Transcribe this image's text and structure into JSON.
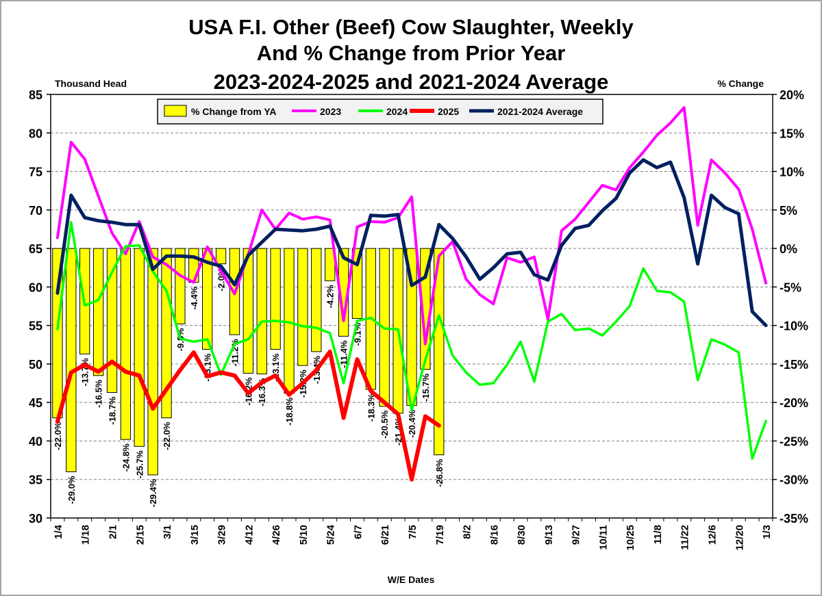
{
  "chart_data": {
    "type": "bar",
    "title_lines": [
      "USA F.I. Other (Beef) Cow Slaughter, Weekly",
      "And % Change from Prior Year",
      "2023-2024-2025 and 2021-2024 Average"
    ],
    "ylabel_left": "Thousand Head",
    "ylabel_right": "% Change",
    "xlabel": "W/E Dates",
    "ylim_left": [
      30,
      85
    ],
    "yticks_left": [
      30,
      35,
      40,
      45,
      50,
      55,
      60,
      65,
      70,
      75,
      80,
      85
    ],
    "ylim_right": [
      -35,
      20
    ],
    "yticks_right": [
      "-35%",
      "-30%",
      "-25%",
      "-20%",
      "-15%",
      "-10%",
      "-5%",
      "0%",
      "5%",
      "10%",
      "15%",
      "20%"
    ],
    "yticks_right_values": [
      -35,
      -30,
      -25,
      -20,
      -15,
      -10,
      -5,
      0,
      5,
      10,
      15,
      20
    ],
    "x_tick_labels": [
      "1/4",
      "1/18",
      "2/1",
      "2/15",
      "3/1",
      "3/15",
      "3/29",
      "4/12",
      "4/26",
      "5/10",
      "5/24",
      "6/7",
      "6/21",
      "7/5",
      "7/19",
      "8/2",
      "8/16",
      "8/30",
      "9/13",
      "9/27",
      "10/11",
      "10/25",
      "11/8",
      "11/22",
      "12/6",
      "12/20",
      "1/3"
    ],
    "legend": [
      "% Change from YA",
      "2023",
      "2024",
      "2025",
      "2021-2024 Average"
    ],
    "legend_position": "top-center",
    "grid": "horizontal-dashed",
    "colors": {
      "bar_fill": "#ffff00",
      "bar_stroke": "#000000",
      "s2023": "#ff00ff",
      "s2024": "#00ff00",
      "s2025": "#ff0000",
      "avg": "#002060",
      "plot_border": "#000000",
      "grid": "#808080",
      "frame": "#888888"
    },
    "weeks": 53,
    "pct_change": [
      -22.0,
      -29.0,
      -13.7,
      -16.5,
      -18.7,
      -24.8,
      -25.7,
      -29.4,
      -22.0,
      -9.8,
      -4.4,
      -13.1,
      -2.0,
      -11.2,
      -16.2,
      -16.3,
      -13.1,
      -18.8,
      -15.2,
      -13.4,
      -4.2,
      -11.4,
      -9.1,
      -18.3,
      -20.5,
      -21.4,
      -20.4,
      -15.7,
      -26.8
    ],
    "pct_labels": [
      "-22.0%",
      "-29.0%",
      "-13.7%",
      "-16.5%",
      "-18.7%",
      "-24.8%",
      "-25.7%",
      "-29.4%",
      "-22.0%",
      "-9.8%",
      "-4.4%",
      "-13.1%",
      "-2.0%",
      "-11.2%",
      "-16.2%",
      "-16.3%",
      "-13.1%",
      "-18.8%",
      "-15.2%",
      "-13.4%",
      "-4.2%",
      "-11.4%",
      "-9.1%",
      "-18.3%",
      "-20.5%",
      "-21.4%",
      "-20.4%",
      "-15.7%",
      "-26.8%"
    ],
    "series": [
      {
        "name": "2023",
        "values": [
          66.4,
          78.8,
          76.6,
          71.8,
          67.0,
          64.3,
          68.5,
          63.9,
          62.9,
          61.5,
          60.6,
          65.2,
          62.1,
          59.1,
          64.2,
          70.0,
          67.5,
          69.6,
          68.8,
          69.1,
          68.7,
          55.6,
          67.8,
          68.5,
          68.4,
          69.0,
          71.7,
          52.6,
          64.0,
          65.9,
          61.0,
          59.0,
          57.8,
          63.8,
          63.2,
          63.9,
          55.8,
          67.3,
          68.8,
          71.0,
          73.2,
          72.6,
          75.5,
          77.5,
          79.7,
          81.3,
          83.3,
          68.0,
          76.5,
          74.8,
          72.7,
          67.5,
          60.5
        ]
      },
      {
        "name": "2024",
        "values": [
          54.5,
          68.4,
          57.6,
          58.3,
          61.9,
          65.3,
          65.4,
          62.0,
          59.5,
          53.3,
          52.9,
          53.2,
          48.6,
          52.6,
          53.2,
          55.5,
          55.6,
          55.4,
          54.9,
          54.7,
          54.0,
          47.5,
          55.6,
          56.0,
          54.6,
          54.5,
          44.0,
          50.5,
          56.3,
          51.1,
          48.9,
          47.3,
          47.5,
          49.9,
          52.9,
          47.7,
          55.5,
          56.5,
          54.4,
          54.6,
          53.7,
          55.5,
          57.5,
          62.4,
          59.5,
          59.3,
          58.1,
          47.9,
          53.2,
          52.5,
          51.5,
          37.7,
          42.6
        ]
      },
      {
        "name": "2025",
        "values": [
          42.5,
          48.9,
          49.9,
          49.0,
          50.3,
          49.0,
          48.5,
          44.2,
          46.7,
          49.2,
          51.5,
          48.4,
          48.9,
          48.5,
          46.2,
          47.6,
          48.5,
          46.0,
          47.5,
          49.2,
          51.6,
          43.0,
          50.6,
          46.5,
          45.0,
          43.5,
          35.0,
          43.2,
          42.0
        ]
      },
      {
        "name": "2021-2024 Average",
        "values": [
          59.2,
          71.9,
          69.0,
          68.6,
          68.4,
          68.1,
          68.1,
          62.3,
          64.0,
          64.0,
          63.9,
          63.2,
          62.7,
          60.3,
          64.1,
          65.8,
          67.5,
          67.4,
          67.3,
          67.5,
          67.9,
          63.8,
          62.9,
          69.3,
          69.2,
          69.4,
          60.2,
          61.3,
          68.1,
          66.3,
          63.9,
          61.0,
          62.5,
          64.3,
          64.5,
          61.6,
          60.9,
          65.4,
          67.6,
          68.0,
          69.9,
          71.5,
          74.8,
          76.5,
          75.5,
          76.2,
          71.6,
          63.0,
          71.9,
          70.3,
          69.5,
          56.8,
          55.0
        ]
      }
    ]
  }
}
